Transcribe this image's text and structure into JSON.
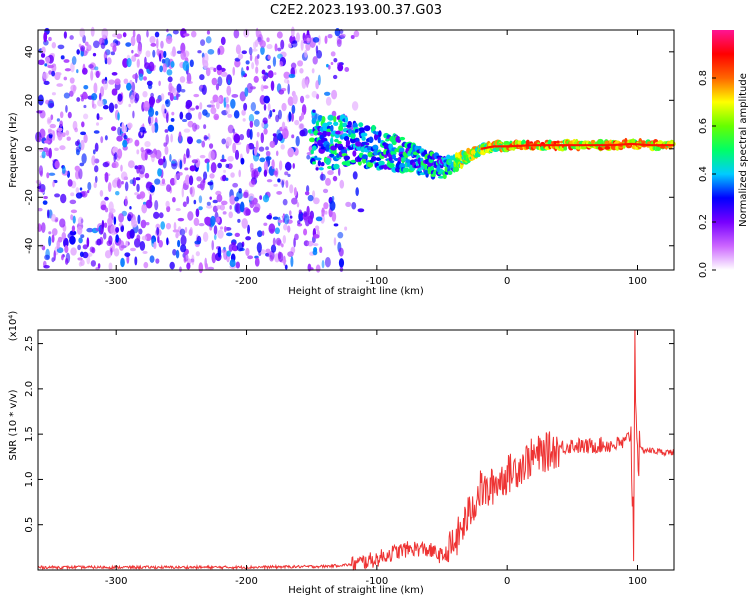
{
  "page_title": "C2E2.2023.193.00.37.G03",
  "chart_data": [
    {
      "type": "heatmap",
      "title": "C2E2.2023.193.00.37.G03",
      "xlabel": "Height of straight line (km)",
      "ylabel": "Frequency (Hz)",
      "xlim": [
        -360,
        128
      ],
      "ylim": [
        -50,
        49
      ],
      "x_ticks": [
        -300,
        -200,
        -100,
        0,
        100
      ],
      "x_tick_labels": [
        "-300",
        "-200",
        "-100",
        "0",
        "100"
      ],
      "y_ticks": [
        -40,
        -20,
        0,
        20,
        40
      ],
      "y_tick_labels": [
        "-40",
        "-20",
        "0",
        "20",
        "40"
      ],
      "colorbar": {
        "label": "Normalized spectral amplitude",
        "range": [
          0,
          1
        ],
        "ticks": [
          0.0,
          0.2,
          0.4,
          0.6,
          0.8
        ],
        "tick_labels": [
          "0.0",
          "0.2",
          "0.4",
          "0.6",
          "0.8"
        ],
        "colormap": [
          "#ffffff",
          "#cc66ff",
          "#7700ff",
          "#0000ff",
          "#00ccff",
          "#00ff66",
          "#66ff00",
          "#ffff00",
          "#ff6600",
          "#ff0000",
          "#ff1493"
        ]
      },
      "signal_track": {
        "x": [
          -150,
          -130,
          -110,
          -90,
          -75,
          -60,
          -50,
          -40,
          -30,
          -20,
          -10,
          0,
          20,
          40,
          60,
          80,
          95,
          110,
          128
        ],
        "y": [
          4,
          3,
          1,
          -1,
          -3,
          -6,
          -8,
          -6,
          -3,
          0,
          1,
          1,
          1.5,
          1.5,
          1.5,
          1.5,
          2,
          1.5,
          1.5
        ]
      },
      "grid": false
    },
    {
      "type": "line",
      "xlabel": "Height of straight line (km)",
      "ylabel": "SNR (10 * v/v)",
      "y_multiplier_label": "(x10⁴)",
      "xlim": [
        -360,
        128
      ],
      "ylim": [
        0,
        2.65
      ],
      "x_ticks": [
        -300,
        -200,
        -100,
        0,
        100
      ],
      "x_tick_labels": [
        "-300",
        "-200",
        "-100",
        "0",
        "100"
      ],
      "y_ticks": [
        0.5,
        1.0,
        1.5,
        2.0,
        2.5
      ],
      "y_tick_labels": [
        "0.5",
        "1.0",
        "1.5",
        "2.0",
        "2.5"
      ],
      "series_color": "#ee3333",
      "grid": false,
      "x": [
        -360,
        -300,
        -200,
        -140,
        -120,
        -110,
        -100,
        -90,
        -80,
        -70,
        -60,
        -50,
        -45,
        -40,
        -35,
        -30,
        -25,
        -20,
        -15,
        -10,
        -5,
        0,
        10,
        20,
        30,
        40,
        50,
        60,
        70,
        80,
        90,
        95,
        97,
        98,
        99,
        100,
        101,
        103,
        110,
        120,
        128
      ],
      "y": [
        0.03,
        0.03,
        0.03,
        0.04,
        0.06,
        0.09,
        0.12,
        0.18,
        0.22,
        0.24,
        0.22,
        0.15,
        0.2,
        0.3,
        0.45,
        0.6,
        0.75,
        0.9,
        0.85,
        0.95,
        1.0,
        1.05,
        1.15,
        1.25,
        1.3,
        1.35,
        1.38,
        1.36,
        1.38,
        1.38,
        1.4,
        1.5,
        0.3,
        2.55,
        1.8,
        1.35,
        1.32,
        1.33,
        1.32,
        1.3,
        1.3
      ]
    }
  ]
}
